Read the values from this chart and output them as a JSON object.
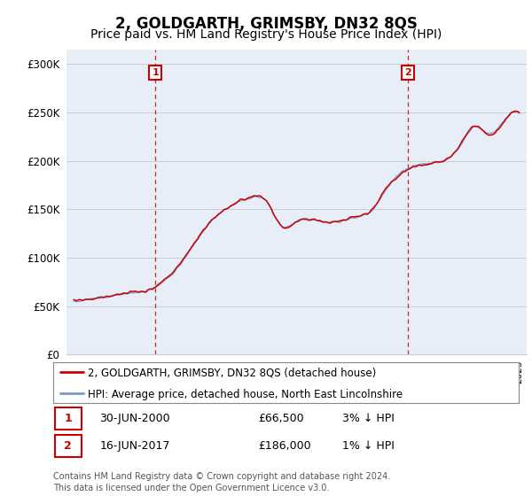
{
  "title": "2, GOLDGARTH, GRIMSBY, DN32 8QS",
  "subtitle": "Price paid vs. HM Land Registry's House Price Index (HPI)",
  "title_fontsize": 12,
  "subtitle_fontsize": 10,
  "ylabel_ticks": [
    "£0",
    "£50K",
    "£100K",
    "£150K",
    "£200K",
    "£250K",
    "£300K"
  ],
  "ytick_values": [
    0,
    50000,
    100000,
    150000,
    200000,
    250000,
    300000
  ],
  "ylim": [
    0,
    315000
  ],
  "xlim_start": 1994.5,
  "xlim_end": 2025.5,
  "transaction1": {
    "date": "30-JUN-2000",
    "price": 66500,
    "label": "1",
    "year": 2000.5
  },
  "transaction2": {
    "date": "16-JUN-2017",
    "price": 186000,
    "label": "2",
    "year": 2017.5
  },
  "legend_line1": "2, GOLDGARTH, GRIMSBY, DN32 8QS (detached house)",
  "legend_line2": "HPI: Average price, detached house, North East Lincolnshire",
  "table_row1": [
    "1",
    "30-JUN-2000",
    "£66,500",
    "3% ↓ HPI"
  ],
  "table_row2": [
    "2",
    "16-JUN-2017",
    "£186,000",
    "1% ↓ HPI"
  ],
  "footer": "Contains HM Land Registry data © Crown copyright and database right 2024.\nThis data is licensed under the Open Government Licence v3.0.",
  "line_color_red": "#cc0000",
  "line_color_blue": "#7799cc",
  "bg_color": "#e8eef8",
  "grid_color": "#cccccc"
}
